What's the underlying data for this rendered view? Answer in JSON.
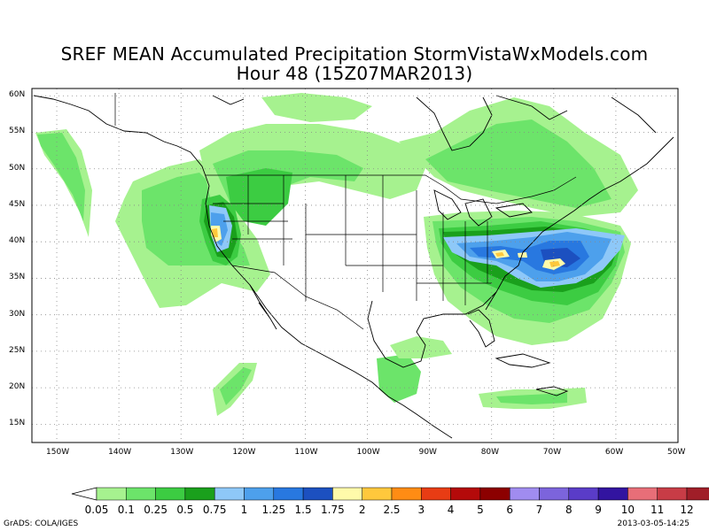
{
  "title": {
    "line1": "SREF MEAN Accumulated Precipitation StormVistaWxModels.com",
    "line2": "Hour 48 (15Z07MAR2013)"
  },
  "axes": {
    "lat_labels": [
      "60N",
      "55N",
      "50N",
      "45N",
      "40N",
      "35N",
      "30N",
      "25N",
      "20N",
      "15N"
    ],
    "lat_values": [
      60,
      55,
      50,
      45,
      40,
      35,
      30,
      25,
      20,
      15
    ],
    "lon_labels": [
      "150W",
      "140W",
      "130W",
      "120W",
      "110W",
      "100W",
      "90W",
      "80W",
      "70W",
      "60W",
      "50W"
    ],
    "lon_values": [
      -150,
      -140,
      -130,
      -120,
      -110,
      -100,
      -90,
      -80,
      -70,
      -60,
      -50
    ],
    "lat_range": [
      12.5,
      61
    ],
    "lon_range": [
      -154,
      -50
    ],
    "grid": "dotted"
  },
  "colorbar": {
    "labels": [
      "0.05",
      "0.1",
      "0.25",
      "0.5",
      "0.75",
      "1",
      "1.25",
      "1.5",
      "1.75",
      "2",
      "2.5",
      "3",
      "4",
      "5",
      "6",
      "7",
      "8",
      "9",
      "10",
      "11",
      "12"
    ],
    "colors": [
      "#a6f28f",
      "#6ce46a",
      "#3ccc42",
      "#1aa01c",
      "#8ec8f8",
      "#4da0ec",
      "#2878e0",
      "#1c50c0",
      "#fffaaa",
      "#ffc83c",
      "#ff8c14",
      "#e83c14",
      "#b40a0a",
      "#8c0000",
      "#a08cf0",
      "#7c64dc",
      "#5a3cc8",
      "#3214a0",
      "#e86e78",
      "#c83c46",
      "#a01e28"
    ]
  },
  "footer": {
    "left": "GrADS: COLA/IGES",
    "right": "2013-03-05-14:25"
  }
}
